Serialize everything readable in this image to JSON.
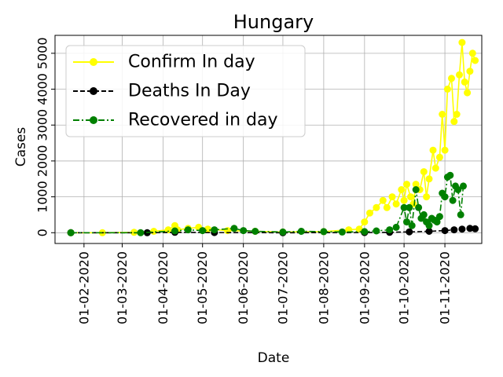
{
  "chart_data": {
    "type": "line",
    "title": "Hungary",
    "xlabel": "Date",
    "ylabel": "Cases",
    "grid": true,
    "legend_position": "top-left",
    "x_ticks": [
      "01-02-2020",
      "01-03-2020",
      "01-04-2020",
      "01-05-2020",
      "01-06-2020",
      "01-07-2020",
      "01-08-2020",
      "01-09-2020",
      "01-10-2020",
      "01-11-2020"
    ],
    "y_ticks": [
      "0",
      "1000",
      "2000",
      "3000",
      "4000",
      "5000"
    ],
    "xlim": [
      "2020-01-10",
      "2020-11-29"
    ],
    "ylim": [
      -300,
      5500
    ],
    "series": [
      {
        "name": "Confirm In day",
        "color": "#ffff00",
        "linestyle": "solid",
        "marker": "circle",
        "points": [
          [
            "2020-01-22",
            0
          ],
          [
            "2020-02-15",
            0
          ],
          [
            "2020-03-10",
            10
          ],
          [
            "2020-03-25",
            40
          ],
          [
            "2020-04-05",
            80
          ],
          [
            "2020-04-10",
            200
          ],
          [
            "2020-04-12",
            80
          ],
          [
            "2020-04-20",
            120
          ],
          [
            "2020-04-28",
            150
          ],
          [
            "2020-05-05",
            100
          ],
          [
            "2020-05-20",
            60
          ],
          [
            "2020-06-10",
            40
          ],
          [
            "2020-07-01",
            20
          ],
          [
            "2020-08-01",
            30
          ],
          [
            "2020-08-20",
            80
          ],
          [
            "2020-08-28",
            100
          ],
          [
            "2020-09-01",
            300
          ],
          [
            "2020-09-05",
            550
          ],
          [
            "2020-09-10",
            700
          ],
          [
            "2020-09-15",
            900
          ],
          [
            "2020-09-18",
            700
          ],
          [
            "2020-09-22",
            1000
          ],
          [
            "2020-09-25",
            800
          ],
          [
            "2020-09-29",
            1200
          ],
          [
            "2020-10-01",
            900
          ],
          [
            "2020-10-03",
            1350
          ],
          [
            "2020-10-06",
            1000
          ],
          [
            "2020-10-08",
            800
          ],
          [
            "2020-10-10",
            1350
          ],
          [
            "2020-10-13",
            1200
          ],
          [
            "2020-10-16",
            1700
          ],
          [
            "2020-10-18",
            1000
          ],
          [
            "2020-10-20",
            1500
          ],
          [
            "2020-10-23",
            2300
          ],
          [
            "2020-10-25",
            1800
          ],
          [
            "2020-10-28",
            2100
          ],
          [
            "2020-10-30",
            3300
          ],
          [
            "2020-11-01",
            2300
          ],
          [
            "2020-11-03",
            4000
          ],
          [
            "2020-11-06",
            4300
          ],
          [
            "2020-11-08",
            3100
          ],
          [
            "2020-11-10",
            3300
          ],
          [
            "2020-11-12",
            4400
          ],
          [
            "2020-11-14",
            5300
          ],
          [
            "2020-11-16",
            4200
          ],
          [
            "2020-11-18",
            3900
          ],
          [
            "2020-11-20",
            4500
          ],
          [
            "2020-11-22",
            5000
          ],
          [
            "2020-11-24",
            4800
          ]
        ]
      },
      {
        "name": "Deaths In Day",
        "color": "#000000",
        "linestyle": "dashed",
        "marker": "circle",
        "points": [
          [
            "2020-01-22",
            0
          ],
          [
            "2020-03-20",
            0
          ],
          [
            "2020-04-10",
            10
          ],
          [
            "2020-05-10",
            5
          ],
          [
            "2020-07-01",
            0
          ],
          [
            "2020-09-01",
            5
          ],
          [
            "2020-09-20",
            10
          ],
          [
            "2020-10-05",
            25
          ],
          [
            "2020-10-20",
            40
          ],
          [
            "2020-11-01",
            60
          ],
          [
            "2020-11-08",
            80
          ],
          [
            "2020-11-14",
            100
          ],
          [
            "2020-11-20",
            120
          ],
          [
            "2020-11-24",
            110
          ]
        ]
      },
      {
        "name": "Recovered in day",
        "color": "#008000",
        "linestyle": "dashdot",
        "marker": "circle",
        "points": [
          [
            "2020-01-22",
            0
          ],
          [
            "2020-03-15",
            0
          ],
          [
            "2020-04-10",
            50
          ],
          [
            "2020-04-20",
            80
          ],
          [
            "2020-05-01",
            60
          ],
          [
            "2020-05-10",
            80
          ],
          [
            "2020-05-25",
            120
          ],
          [
            "2020-06-01",
            60
          ],
          [
            "2020-06-10",
            40
          ],
          [
            "2020-07-01",
            20
          ],
          [
            "2020-07-15",
            40
          ],
          [
            "2020-08-01",
            30
          ],
          [
            "2020-08-15",
            20
          ],
          [
            "2020-09-01",
            30
          ],
          [
            "2020-09-10",
            50
          ],
          [
            "2020-09-20",
            80
          ],
          [
            "2020-09-25",
            150
          ],
          [
            "2020-10-01",
            700
          ],
          [
            "2020-10-03",
            300
          ],
          [
            "2020-10-05",
            700
          ],
          [
            "2020-10-07",
            200
          ],
          [
            "2020-10-10",
            1200
          ],
          [
            "2020-10-12",
            700
          ],
          [
            "2020-10-14",
            400
          ],
          [
            "2020-10-16",
            500
          ],
          [
            "2020-10-18",
            300
          ],
          [
            "2020-10-20",
            200
          ],
          [
            "2020-10-22",
            400
          ],
          [
            "2020-10-24",
            350
          ],
          [
            "2020-10-26",
            300
          ],
          [
            "2020-10-28",
            450
          ],
          [
            "2020-10-30",
            1100
          ],
          [
            "2020-11-01",
            1000
          ],
          [
            "2020-11-03",
            1550
          ],
          [
            "2020-11-05",
            1600
          ],
          [
            "2020-11-07",
            900
          ],
          [
            "2020-11-09",
            1300
          ],
          [
            "2020-11-11",
            1200
          ],
          [
            "2020-11-13",
            500
          ],
          [
            "2020-11-15",
            1300
          ]
        ]
      }
    ]
  }
}
